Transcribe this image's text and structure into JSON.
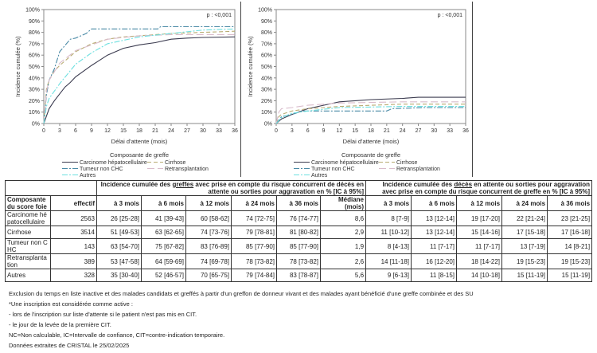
{
  "colors": {
    "Carcinome hépatocellulaire": "#3a3a4e",
    "Cirrhose": "#b8ab72",
    "Tumeur non CHC": "#4a8aa6",
    "Retransplantation": "#d9bccb",
    "Autres": "#6ee0e0"
  },
  "chart_data": [
    {
      "type": "line",
      "title": "",
      "xlabel": "Délai d'attente (mois)",
      "ylabel": "Incidence cumulée (%)",
      "annotation": "p : <0,001",
      "legend_title": "Composante de greffe",
      "legend_placement": "bottom",
      "xlim": [
        0,
        36
      ],
      "ylim": [
        0,
        100
      ],
      "xticks": [
        "0",
        "3",
        "6",
        "9",
        "12",
        "15",
        "18",
        "21",
        "24",
        "27",
        "30",
        "33",
        "36"
      ],
      "yticks": [
        "0%",
        "10%",
        "20%",
        "30%",
        "40%",
        "50%",
        "60%",
        "70%",
        "80%",
        "90%",
        "100%"
      ],
      "series": [
        {
          "name": "Carcinome hépatocellulaire",
          "style": "solid",
          "x": [
            0,
            1,
            2,
            3,
            4,
            5,
            6,
            9,
            10,
            12,
            15,
            18,
            21,
            24,
            27,
            30,
            36
          ],
          "y": [
            0,
            13,
            20,
            26,
            32,
            36,
            41,
            51,
            54,
            60,
            66,
            69,
            71,
            74,
            75,
            75.5,
            76
          ]
        },
        {
          "name": "Cirrhose",
          "style": "dash",
          "x": [
            0,
            0.5,
            1,
            2,
            3,
            6,
            9,
            12,
            15,
            18,
            21,
            24,
            30,
            36
          ],
          "y": [
            0,
            30,
            38,
            46,
            51,
            63,
            70,
            74,
            76,
            77,
            78,
            79,
            80,
            81
          ]
        },
        {
          "name": "Tumeur non CHC",
          "style": "dashdot",
          "x": [
            0,
            0.5,
            1,
            2,
            3,
            5,
            6,
            8,
            9,
            21.5,
            22,
            36
          ],
          "y": [
            0,
            25,
            38,
            48,
            63,
            74,
            75,
            79,
            83,
            83,
            85,
            85
          ]
        },
        {
          "name": "Retransplantation",
          "style": "longdash",
          "x": [
            0,
            0.5,
            1,
            3,
            6,
            12,
            18,
            24,
            36
          ],
          "y": [
            0,
            28,
            38,
            53,
            64,
            74,
            77,
            78,
            78
          ]
        },
        {
          "name": "Autres",
          "style": "dashdot",
          "x": [
            0,
            0.5,
            1,
            3,
            6,
            9,
            12,
            18,
            24,
            30,
            36
          ],
          "y": [
            0,
            15,
            22,
            35,
            52,
            62,
            70,
            76,
            79,
            82,
            83
          ]
        }
      ]
    },
    {
      "type": "line",
      "title": "",
      "xlabel": "Délai d'attente (mois)",
      "ylabel": "Incidence cumulée (%)",
      "annotation": "p : <0,001",
      "legend_title": "Composante de greffe",
      "legend_placement": "bottom",
      "xlim": [
        0,
        36
      ],
      "ylim": [
        0,
        100
      ],
      "xticks": [
        "0",
        "3",
        "6",
        "9",
        "12",
        "15",
        "18",
        "21",
        "24",
        "27",
        "30",
        "33",
        "36"
      ],
      "yticks": [
        "0%",
        "10%",
        "20%",
        "30%",
        "40%",
        "50%",
        "60%",
        "70%",
        "80%",
        "90%",
        "100%"
      ],
      "series": [
        {
          "name": "Carcinome hépatocellulaire",
          "style": "solid",
          "x": [
            0,
            1,
            3,
            6,
            9,
            12,
            15,
            18,
            24,
            27,
            36
          ],
          "y": [
            0,
            4,
            8,
            13,
            16,
            19,
            20,
            21,
            22,
            23,
            23
          ]
        },
        {
          "name": "Cirrhose",
          "style": "dash",
          "x": [
            0,
            0.5,
            1,
            3,
            6,
            12,
            24,
            36
          ],
          "y": [
            0,
            6,
            8,
            11,
            13,
            15,
            17,
            17
          ]
        },
        {
          "name": "Tumeur non CHC",
          "style": "dashdot",
          "x": [
            0,
            1,
            3,
            5,
            12,
            21,
            22,
            28,
            36
          ],
          "y": [
            0,
            6,
            8,
            11,
            11,
            11,
            13,
            14,
            14
          ]
        },
        {
          "name": "Retransplantation",
          "style": "longdash",
          "x": [
            0,
            0.5,
            1,
            3,
            6,
            12,
            24,
            36
          ],
          "y": [
            0,
            10,
            13,
            14,
            16,
            18,
            19,
            19
          ]
        },
        {
          "name": "Autres",
          "style": "dashdot",
          "x": [
            0,
            1,
            3,
            6,
            12,
            24,
            36
          ],
          "y": [
            0,
            5,
            9,
            11,
            14,
            15,
            15
          ]
        }
      ]
    }
  ],
  "table": {
    "group1": {
      "pre": "Incidence cumulée des ",
      "u": "greffes",
      "post": " avec prise en compte du risque concurrent de décès en attente ou sorties pour aggravation en % [IC à 95%]"
    },
    "group2": {
      "pre": "Incidence cumulée des ",
      "u": "décès",
      "post": " en attente ou sorties pour aggravation avec prise en compte du risque concurrent de greffe en % [IC à 95%]"
    },
    "headers": [
      "Composante du score foie",
      "effectif",
      "à 3 mois",
      "à 6 mois",
      "à 12 mois",
      "à 24 mois",
      "à 36 mois",
      "Médiane (mois)",
      "à 3 mois",
      "à 6 mois",
      "à 12 mois",
      "à 24 mois",
      "à 36 mois"
    ],
    "rows": [
      [
        "Carcinome hépatocellulaire",
        "2563",
        "26 [25-28]",
        "41 [39-43]",
        "60 [58-62]",
        "74 [72-75]",
        "76 [74-77]",
        "8,6",
        "8 [7-9]",
        "13 [12-14]",
        "19 [17-20]",
        "22 [21-24]",
        "23 [21-25]"
      ],
      [
        "Cirrhose",
        "3514",
        "51 [49-53]",
        "63 [62-65]",
        "74 [73-76]",
        "79 [78-81]",
        "81 [80-82]",
        "2,9",
        "11 [10-12]",
        "13 [12-14]",
        "15 [14-16]",
        "17 [15-18]",
        "17 [16-18]"
      ],
      [
        "Tumeur non CHC",
        "143",
        "63 [54-70]",
        "75 [67-82]",
        "83 [76-89]",
        "85 [77-90]",
        "85 [77-90]",
        "1,9",
        "8 [4-13]",
        "11 [7-17]",
        "11 [7-17]",
        "13 [7-19]",
        "14 [8-21]"
      ],
      [
        "Retransplantation",
        "389",
        "53 [47-58]",
        "64 [59-69]",
        "74 [69-78]",
        "78 [73-82]",
        "78 [73-82]",
        "2,6",
        "14 [11-18]",
        "16 [12-20]",
        "18 [14-22]",
        "19 [15-23]",
        "19 [15-23]"
      ],
      [
        "Autres",
        "328",
        "35 [30-40]",
        "52 [46-57]",
        "70 [65-75]",
        "79 [74-84]",
        "83 [78-87]",
        "5,6",
        "9 [6-13]",
        "11 [8-15]",
        "14 [10-18]",
        "15 [11-19]",
        "15 [11-19]"
      ]
    ]
  },
  "footnotes": [
    "Exclusion du temps en liste inactive et des malades candidats et greffés à partir d'un greffon de donneur vivant et des malades ayant bénéficié d'une greffe combinée et des SU",
    "*Une inscription est considérée comme active :",
    "- lors de l'inscription sur liste d'attente si le patient n'est pas mis en CIT.",
    "- le jour de la levée de la première CIT.",
    "NC=Non calculable, IC=Intervalle de confiance, CIT=contre-indication temporaire.",
    "Données extraites de CRISTAL le 25/02/2025"
  ]
}
